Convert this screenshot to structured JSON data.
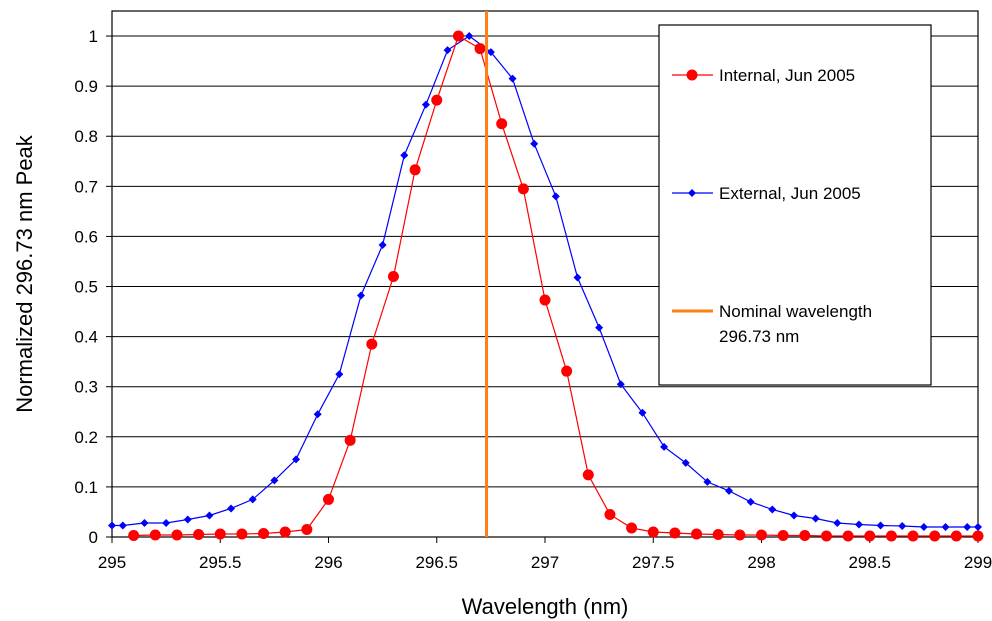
{
  "chart_data": {
    "type": "line",
    "xlabel": "Wavelength (nm)",
    "ylabel": "Normalized 296.73 nm Peak",
    "xlim": [
      295,
      299
    ],
    "ylim": [
      0,
      1.05
    ],
    "xticks": [
      "295",
      "295.5",
      "296",
      "296.5",
      "297",
      "297.5",
      "298",
      "298.5",
      "299"
    ],
    "yticks": [
      "0",
      "0.1",
      "0.2",
      "0.3",
      "0.4",
      "0.5",
      "0.6",
      "0.7",
      "0.8",
      "0.9",
      "1"
    ],
    "grid": "horizontal",
    "legend_position": "top-right",
    "reference_line": {
      "name": "Nominal wavelength 296.73 nm",
      "x": 296.73,
      "color": "#ff7f17"
    },
    "series": [
      {
        "name": "Internal, Jun 2005",
        "color": "#ff0000",
        "marker": "circle",
        "x": [
          295.1,
          295.2,
          295.3,
          295.4,
          295.5,
          295.6,
          295.7,
          295.8,
          295.9,
          296.0,
          296.1,
          296.2,
          296.3,
          296.4,
          296.5,
          296.6,
          296.7,
          296.8,
          296.9,
          297.0,
          297.1,
          297.2,
          297.3,
          297.4,
          297.5,
          297.6,
          297.7,
          297.8,
          297.9,
          298.0,
          298.1,
          298.2,
          298.3,
          298.4,
          298.5,
          298.6,
          298.7,
          298.8,
          298.9,
          299.0
        ],
        "y": [
          0.003,
          0.004,
          0.004,
          0.005,
          0.006,
          0.006,
          0.007,
          0.01,
          0.015,
          0.075,
          0.193,
          0.385,
          0.52,
          0.733,
          0.872,
          1.0,
          0.975,
          0.825,
          0.695,
          0.473,
          0.331,
          0.124,
          0.045,
          0.018,
          0.01,
          0.008,
          0.006,
          0.005,
          0.004,
          0.004,
          0.003,
          0.003,
          0.002,
          0.002,
          0.002,
          0.002,
          0.002,
          0.002,
          0.002,
          0.002
        ]
      },
      {
        "name": "External, Jun 2005",
        "color": "#0000ff",
        "marker": "diamond",
        "x": [
          294.95,
          295.05,
          295.15,
          295.25,
          295.35,
          295.45,
          295.55,
          295.65,
          295.75,
          295.85,
          295.95,
          296.05,
          296.15,
          296.25,
          296.35,
          296.45,
          296.55,
          296.65,
          296.75,
          296.85,
          296.95,
          297.05,
          297.15,
          297.25,
          297.35,
          297.45,
          297.55,
          297.65,
          297.75,
          297.85,
          297.95,
          298.05,
          298.15,
          298.25,
          298.35,
          298.45,
          298.55,
          298.65,
          298.75,
          298.85,
          298.95,
          299.05
        ],
        "y": [
          0.023,
          0.023,
          0.028,
          0.028,
          0.035,
          0.043,
          0.057,
          0.075,
          0.113,
          0.155,
          0.245,
          0.325,
          0.482,
          0.583,
          0.762,
          0.863,
          0.972,
          1.0,
          0.968,
          0.915,
          0.785,
          0.68,
          0.518,
          0.418,
          0.305,
          0.248,
          0.18,
          0.148,
          0.11,
          0.092,
          0.07,
          0.055,
          0.043,
          0.037,
          0.028,
          0.025,
          0.023,
          0.022,
          0.02,
          0.02,
          0.02,
          0.02
        ]
      }
    ]
  },
  "legend": {
    "items": [
      {
        "label": "Internal, Jun 2005"
      },
      {
        "label": "External, Jun 2005"
      },
      {
        "label_line1": "Nominal wavelength",
        "label_line2": "296.73 nm"
      }
    ]
  }
}
